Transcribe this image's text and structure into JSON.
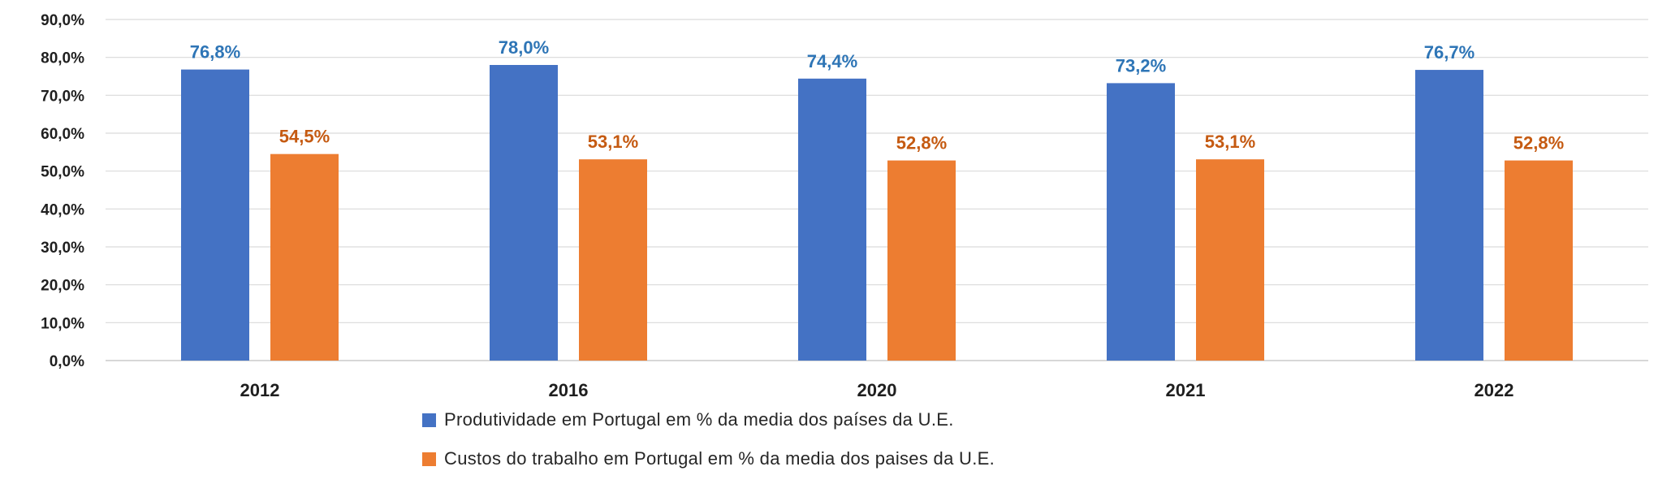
{
  "chart_data": {
    "type": "bar",
    "categories": [
      "2012",
      "2016",
      "2020",
      "2021",
      "2022"
    ],
    "series": [
      {
        "name": "Produtividade em Portugal em  % da media dos países da U.E.",
        "color": "#4472C4",
        "label_color": "#2E75B6",
        "values": [
          76.8,
          78.0,
          74.4,
          73.2,
          76.7
        ],
        "labels": [
          "76,8%",
          "78,0%",
          "74,4%",
          "73,2%",
          "76,7%"
        ]
      },
      {
        "name": "Custos do trabalho em Portugal em % da media dos paises da U.E.",
        "color": "#ED7D31",
        "label_color": "#C55A11",
        "values": [
          54.5,
          53.1,
          52.8,
          53.1,
          52.8
        ],
        "labels": [
          "54,5%",
          "53,1%",
          "52,8%",
          "53,1%",
          "52,8%"
        ]
      }
    ],
    "ylim": [
      0,
      90
    ],
    "yticks": [
      0,
      10,
      20,
      30,
      40,
      50,
      60,
      70,
      80,
      90
    ],
    "ytick_labels": [
      "0,0%",
      "10,0%",
      "20,0%",
      "30,0%",
      "40,0%",
      "50,0%",
      "60,0%",
      "70,0%",
      "80,0%",
      "90,0%"
    ],
    "grid": true,
    "legend_position": "bottom"
  }
}
